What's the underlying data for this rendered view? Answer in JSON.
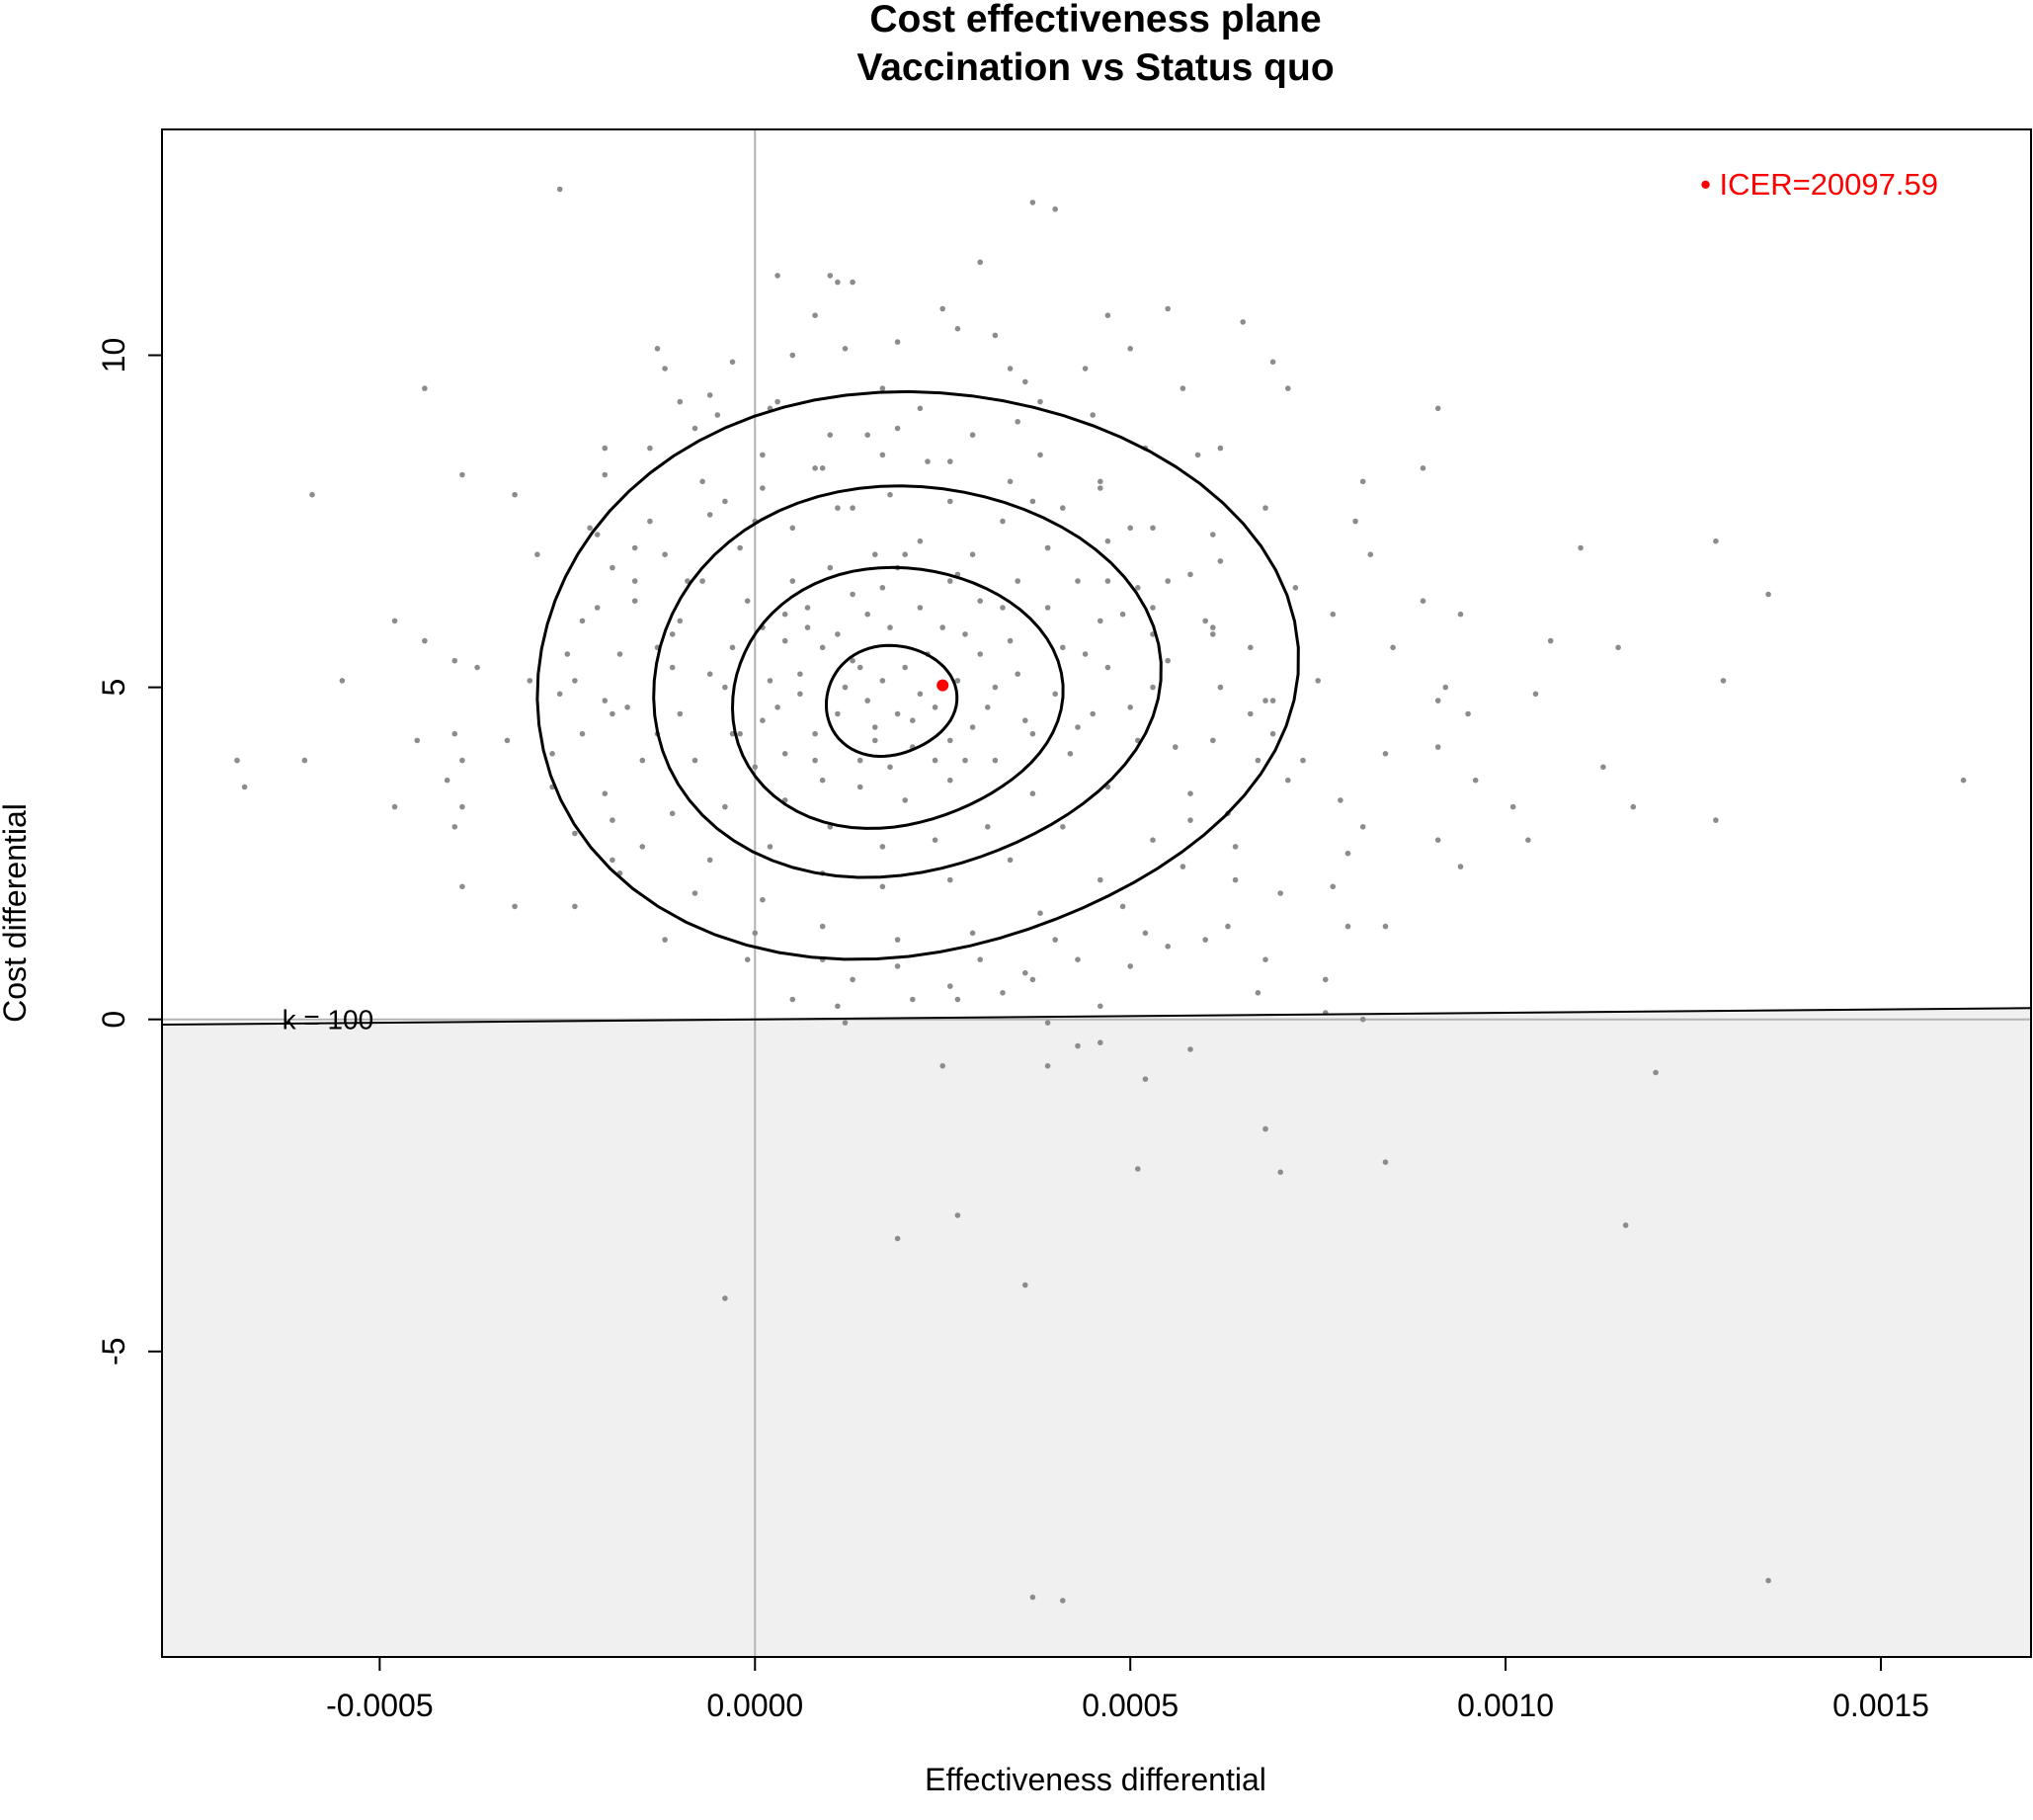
{
  "chart_data": {
    "type": "scatter",
    "title": "Cost effectiveness plane",
    "subtitle": "Vaccination vs Status quo",
    "xlabel": "Effectiveness differential",
    "ylabel": "Cost differential",
    "xlim": [
      -0.00079,
      0.0017
    ],
    "ylim": [
      -9.6,
      13.4
    ],
    "x_ticks": [
      {
        "value": -0.0005,
        "label": "-0.0005"
      },
      {
        "value": 0.0,
        "label": "0.0000"
      },
      {
        "value": 0.0005,
        "label": "0.0005"
      },
      {
        "value": 0.001,
        "label": "0.0010"
      },
      {
        "value": 0.0015,
        "label": "0.0015"
      }
    ],
    "y_ticks": [
      {
        "value": -5,
        "label": "-5"
      },
      {
        "value": 0,
        "label": "0"
      },
      {
        "value": 5,
        "label": "5"
      },
      {
        "value": 10,
        "label": "10"
      }
    ],
    "colors": {
      "points": "#8c8c8c",
      "icer": "#ff0000",
      "region": "#f0f0f0",
      "axes_zero": "#b3b3b3",
      "contour": "#000000"
    },
    "wtp_line": {
      "k": 100,
      "label": "k = 100"
    },
    "icer": {
      "x": 0.00025,
      "y": 5.03,
      "label": "• ICER=20097.59"
    },
    "contours": [
      {
        "cx": 0.00018,
        "cy": 4.8,
        "rx": 8.5e-05,
        "ry": 0.85
      },
      {
        "cx": 0.000185,
        "cy": 4.85,
        "rx": 0.000215,
        "ry": 2.0
      },
      {
        "cx": 0.000195,
        "cy": 5.1,
        "rx": 0.00033,
        "ry": 3.0
      },
      {
        "cx": 0.000205,
        "cy": 5.2,
        "rx": 0.000495,
        "ry": 4.35
      }
    ],
    "points": [
      [
        -0.00026,
        12.5
      ],
      [
        0.00037,
        12.3
      ],
      [
        0.0004,
        12.2
      ],
      [
        0.0003,
        11.4
      ],
      [
        3e-05,
        11.2
      ],
      [
        0.0001,
        11.2
      ],
      [
        0.00011,
        11.1
      ],
      [
        0.00013,
        11.1
      ],
      [
        0.00025,
        10.7
      ],
      [
        0.00055,
        10.7
      ],
      [
        0.00065,
        10.5
      ],
      [
        0.00047,
        10.6
      ],
      [
        8e-05,
        10.6
      ],
      [
        0.00027,
        10.4
      ],
      [
        0.00032,
        10.3
      ],
      [
        0.00019,
        10.2
      ],
      [
        -0.00013,
        10.1
      ],
      [
        5e-05,
        10.0
      ],
      [
        0.00012,
        10.1
      ],
      [
        0.0005,
        10.1
      ],
      [
        0.00069,
        9.9
      ],
      [
        -0.00012,
        9.8
      ],
      [
        -3e-05,
        9.9
      ],
      [
        0.00034,
        9.8
      ],
      [
        0.00044,
        9.8
      ],
      [
        -0.00044,
        9.5
      ],
      [
        0.00071,
        9.5
      ],
      [
        -6e-05,
        9.4
      ],
      [
        0.00017,
        9.5
      ],
      [
        0.00038,
        9.3
      ],
      [
        0.00057,
        9.5
      ],
      [
        0.00091,
        9.2
      ],
      [
        -5e-05,
        9.1
      ],
      [
        2e-05,
        9.2
      ],
      [
        0.00035,
        9.0
      ],
      [
        -8e-05,
        8.9
      ],
      [
        0.00015,
        8.8
      ],
      [
        0.00062,
        8.6
      ],
      [
        -0.00014,
        8.6
      ],
      [
        0.00023,
        8.4
      ],
      [
        0.00059,
        8.5
      ],
      [
        0.00089,
        8.3
      ],
      [
        -0.00039,
        8.2
      ],
      [
        -0.0002,
        8.2
      ],
      [
        8e-05,
        8.3
      ],
      [
        0.00046,
        8.1
      ],
      [
        0.00081,
        8.1
      ],
      [
        -0.00059,
        7.9
      ],
      [
        -0.00032,
        7.9
      ],
      [
        -4e-05,
        7.8
      ],
      [
        0.00013,
        7.7
      ],
      [
        0.00037,
        7.8
      ],
      [
        0.00068,
        7.7
      ],
      [
        0.0011,
        7.1
      ],
      [
        0.00128,
        7.2
      ],
      [
        -0.00022,
        7.4
      ],
      [
        0.0,
        7.5
      ],
      [
        0.0005,
        7.4
      ],
      [
        0.0008,
        7.5
      ],
      [
        -0.00029,
        7.0
      ],
      [
        -0.00016,
        7.1
      ],
      [
        0.0002,
        7.0
      ],
      [
        0.00039,
        7.1
      ],
      [
        0.00062,
        6.9
      ],
      [
        0.00082,
        7.0
      ],
      [
        -9e-05,
        6.6
      ],
      [
        0.00027,
        6.7
      ],
      [
        0.00047,
        6.6
      ],
      [
        0.00072,
        6.5
      ],
      [
        0.00089,
        6.3
      ],
      [
        0.00135,
        6.4
      ],
      [
        -0.00048,
        6.0
      ],
      [
        -0.00021,
        6.2
      ],
      [
        4e-05,
        6.1
      ],
      [
        0.00053,
        6.2
      ],
      [
        0.00077,
        6.1
      ],
      [
        0.00094,
        6.1
      ],
      [
        -0.00044,
        5.7
      ],
      [
        -0.00011,
        5.8
      ],
      [
        0.00061,
        5.8
      ],
      [
        0.00085,
        5.6
      ],
      [
        0.00106,
        5.7
      ],
      [
        0.00115,
        5.6
      ],
      [
        -0.0004,
        5.4
      ],
      [
        -0.00037,
        5.3
      ],
      [
        -0.0003,
        5.1
      ],
      [
        -0.00055,
        5.1
      ],
      [
        0.00075,
        5.1
      ],
      [
        0.00092,
        5.0
      ],
      [
        0.00129,
        5.1
      ],
      [
        -0.00026,
        4.9
      ],
      [
        0.00068,
        4.8
      ],
      [
        0.00091,
        4.8
      ],
      [
        0.00104,
        4.9
      ],
      [
        -0.00019,
        4.6
      ],
      [
        0.00066,
        4.6
      ],
      [
        0.00095,
        4.6
      ],
      [
        -0.00045,
        4.2
      ],
      [
        -0.0004,
        4.3
      ],
      [
        -0.00033,
        4.2
      ],
      [
        0.00069,
        4.3
      ],
      [
        0.00091,
        4.1
      ],
      [
        -0.00069,
        3.9
      ],
      [
        -0.0006,
        3.9
      ],
      [
        -0.00039,
        3.9
      ],
      [
        0.00073,
        3.9
      ],
      [
        0.00084,
        4.0
      ],
      [
        0.00113,
        3.8
      ],
      [
        -0.00068,
        3.5
      ],
      [
        -0.00041,
        3.6
      ],
      [
        -0.00027,
        3.5
      ],
      [
        0.00071,
        3.6
      ],
      [
        0.00096,
        3.6
      ],
      [
        0.00161,
        3.6
      ],
      [
        -0.00048,
        3.2
      ],
      [
        -0.00039,
        3.2
      ],
      [
        0.00078,
        3.3
      ],
      [
        0.00101,
        3.2
      ],
      [
        0.00117,
        3.2
      ],
      [
        -0.0004,
        2.9
      ],
      [
        -0.00024,
        2.8
      ],
      [
        0.00081,
        2.9
      ],
      [
        0.00091,
        2.7
      ],
      [
        0.00128,
        3.0
      ],
      [
        0.00103,
        2.7
      ],
      [
        -0.00019,
        2.4
      ],
      [
        0.00079,
        2.5
      ],
      [
        0.00094,
        2.3
      ],
      [
        -0.00039,
        2.0
      ],
      [
        -0.00018,
        2.2
      ],
      [
        0.00064,
        2.1
      ],
      [
        0.00077,
        2.0
      ],
      [
        -0.00032,
        1.7
      ],
      [
        -0.00024,
        1.7
      ],
      [
        0.0007,
        1.9
      ],
      [
        0.00079,
        1.4
      ],
      [
        0.00084,
        1.4
      ],
      [
        0.00052,
        1.3
      ],
      [
        0.0006,
        1.2
      ],
      [
        0.00068,
        0.9
      ],
      [
        0.0005,
        0.8
      ],
      [
        0.00076,
        0.6
      ],
      [
        0.00036,
        0.7
      ],
      [
        0.00037,
        0.6
      ],
      [
        0.00067,
        0.4
      ],
      [
        0.00046,
        0.2
      ],
      [
        5e-05,
        0.3
      ],
      [
        0.00027,
        0.3
      ],
      [
        0.00076,
        0.1
      ],
      [
        0.00081,
        0.0
      ],
      [
        0.00012,
        -0.05
      ],
      [
        0.00039,
        -0.05
      ],
      [
        0.00043,
        -0.4
      ],
      [
        0.00046,
        -0.35
      ],
      [
        0.00058,
        -0.45
      ],
      [
        0.00025,
        -0.7
      ],
      [
        0.00039,
        -0.7
      ],
      [
        0.00052,
        -0.9
      ],
      [
        0.0012,
        -0.8
      ],
      [
        0.00068,
        -1.65
      ],
      [
        0.00051,
        -2.25
      ],
      [
        0.0007,
        -2.3
      ],
      [
        0.00084,
        -2.15
      ],
      [
        0.00027,
        -2.95
      ],
      [
        0.00019,
        -3.3
      ],
      [
        0.00116,
        -3.1
      ],
      [
        0.00036,
        -4.0
      ],
      [
        -4e-05,
        -4.2
      ],
      [
        0.00037,
        -8.7
      ],
      [
        0.00041,
        -8.75
      ],
      [
        0.00135,
        -8.45
      ],
      [
        9e-05,
        5.6
      ],
      [
        0.00014,
        5.3
      ],
      [
        0.00018,
        5.9
      ],
      [
        0.00023,
        5.5
      ],
      [
        0.00028,
        5.8
      ],
      [
        6e-05,
        4.9
      ],
      [
        0.00011,
        4.6
      ],
      [
        0.00016,
        4.2
      ],
      [
        0.00021,
        4.5
      ],
      [
        0.00026,
        4.2
      ],
      [
        0.00031,
        4.7
      ],
      [
        0.00035,
        5.2
      ],
      [
        0.0003,
        5.5
      ],
      [
        0.00033,
        6.2
      ],
      [
        0.00026,
        6.6
      ],
      [
        0.00019,
        6.8
      ],
      [
        0.00013,
        6.4
      ],
      [
        7e-05,
        6.2
      ],
      [
        4e-05,
        5.7
      ],
      [
        2e-05,
        5.1
      ],
      [
        1e-05,
        4.5
      ],
      [
        4e-05,
        4.0
      ],
      [
        9e-05,
        3.6
      ],
      [
        0.00014,
        3.5
      ],
      [
        0.0002,
        3.3
      ],
      [
        0.00026,
        3.6
      ],
      [
        0.00032,
        3.9
      ],
      [
        0.00037,
        4.3
      ],
      [
        0.0004,
        4.9
      ],
      [
        0.00041,
        5.6
      ],
      [
        0.00039,
        6.2
      ],
      [
        0.00035,
        6.6
      ],
      [
        0.00029,
        7.0
      ],
      [
        0.00022,
        7.2
      ],
      [
        0.00016,
        7.0
      ],
      [
        0.0001,
        6.8
      ],
      [
        5e-05,
        6.6
      ],
      [
        -1e-05,
        6.3
      ],
      [
        -3e-05,
        5.6
      ],
      [
        -4e-05,
        5.0
      ],
      [
        -3e-05,
        4.3
      ],
      [
        0.0,
        3.8
      ],
      [
        4e-05,
        3.3
      ],
      [
        0.0001,
        2.9
      ],
      [
        0.00017,
        2.6
      ],
      [
        0.00024,
        2.7
      ],
      [
        0.00031,
        2.9
      ],
      [
        0.00037,
        3.4
      ],
      [
        0.00042,
        4.0
      ],
      [
        0.00045,
        4.6
      ],
      [
        0.00047,
        5.3
      ],
      [
        0.00046,
        6.0
      ],
      [
        0.00043,
        6.6
      ],
      [
        0.00039,
        7.1
      ],
      [
        0.00033,
        7.5
      ],
      [
        0.00026,
        7.8
      ],
      [
        0.00018,
        7.9
      ],
      [
        0.00011,
        7.7
      ],
      [
        5e-05,
        7.4
      ],
      [
        -2e-05,
        7.1
      ],
      [
        -7e-05,
        6.6
      ],
      [
        -0.0001,
        6.0
      ],
      [
        -0.00011,
        5.3
      ],
      [
        -0.0001,
        4.6
      ],
      [
        -8e-05,
        3.9
      ],
      [
        -4e-05,
        3.2
      ],
      [
        2e-05,
        2.6
      ],
      [
        9e-05,
        2.2
      ],
      [
        0.00017,
        2.0
      ],
      [
        0.00026,
        2.1
      ],
      [
        0.00034,
        2.4
      ],
      [
        0.00041,
        2.9
      ],
      [
        0.00047,
        3.5
      ],
      [
        0.00051,
        4.2
      ],
      [
        0.00053,
        5.0
      ],
      [
        0.00053,
        5.8
      ],
      [
        0.00051,
        6.5
      ],
      [
        0.00047,
        7.2
      ],
      [
        0.00041,
        7.7
      ],
      [
        0.00034,
        8.1
      ],
      [
        0.00026,
        8.4
      ],
      [
        0.00017,
        8.5
      ],
      [
        9e-05,
        8.3
      ],
      [
        1e-05,
        8.0
      ],
      [
        -6e-05,
        7.6
      ],
      [
        -0.00012,
        7.0
      ],
      [
        -0.00016,
        6.3
      ],
      [
        -0.00018,
        5.5
      ],
      [
        -0.00017,
        4.7
      ],
      [
        -0.00015,
        3.9
      ],
      [
        -0.00011,
        3.1
      ],
      [
        -6e-05,
        2.4
      ],
      [
        1e-05,
        1.8
      ],
      [
        9e-05,
        1.4
      ],
      [
        0.00019,
        1.2
      ],
      [
        0.00029,
        1.3
      ],
      [
        0.00038,
        1.6
      ],
      [
        0.00046,
        2.1
      ],
      [
        0.00053,
        2.7
      ],
      [
        0.00058,
        3.4
      ],
      [
        0.00061,
        4.2
      ],
      [
        0.00062,
        5.0
      ],
      [
        0.00061,
        5.9
      ],
      [
        0.00058,
        6.7
      ],
      [
        0.00053,
        7.4
      ],
      [
        0.00046,
        8.0
      ],
      [
        0.00038,
        8.5
      ],
      [
        0.00029,
        8.8
      ],
      [
        0.00019,
        8.9
      ],
      [
        0.0001,
        8.8
      ],
      [
        1e-05,
        8.5
      ],
      [
        -7e-05,
        8.1
      ],
      [
        -0.00014,
        7.5
      ],
      [
        -0.00019,
        6.8
      ],
      [
        -0.00023,
        6.0
      ],
      [
        -0.00024,
        5.1
      ],
      [
        -0.00023,
        4.3
      ],
      [
        -0.0002,
        3.4
      ],
      [
        -0.00015,
        2.6
      ],
      [
        -8e-05,
        1.9
      ],
      [
        0.0,
        1.3
      ],
      [
        9e-05,
        0.9
      ],
      [
        0.00019,
        0.8
      ],
      [
        0.0003,
        0.9
      ],
      [
        0.0004,
        1.2
      ],
      [
        0.00049,
        1.7
      ],
      [
        0.00057,
        2.3
      ],
      [
        0.00063,
        3.1
      ],
      [
        0.00067,
        3.9
      ],
      [
        0.00069,
        4.8
      ],
      [
        0.00015,
        4.8
      ],
      [
        0.00017,
        5.1
      ],
      [
        0.00019,
        4.6
      ],
      [
        0.00022,
        4.9
      ],
      [
        0.00012,
        5.0
      ],
      [
        0.0002,
        5.3
      ],
      [
        0.00024,
        4.7
      ],
      [
        0.00016,
        4.4
      ],
      [
        0.00013,
        5.4
      ],
      [
        0.00021,
        4.1
      ],
      [
        8e-05,
        4.3
      ],
      [
        0.00027,
        5.1
      ],
      [
        0.00025,
        5.9
      ],
      [
        0.00011,
        5.8
      ],
      [
        6e-05,
        5.2
      ],
      [
        0.00029,
        4.4
      ],
      [
        0.00018,
        3.8
      ],
      [
        0.00015,
        6.1
      ],
      [
        0.00022,
        6.2
      ],
      [
        0.00032,
        5.0
      ],
      [
        3e-05,
        4.7
      ],
      [
        8e-05,
        3.9
      ],
      [
        0.00028,
        3.9
      ],
      [
        0.00034,
        5.7
      ],
      [
        0.00014,
        3.9
      ],
      [
        0.00024,
        3.9
      ],
      [
        0.00036,
        4.5
      ],
      [
        7e-05,
        5.9
      ],
      [
        0.0003,
        6.3
      ],
      [
        0.00017,
        6.5
      ],
      [
        0.00044,
        5.5
      ],
      [
        0.00043,
        4.4
      ],
      [
        1e-05,
        5.9
      ],
      [
        -6e-05,
        5.2
      ],
      [
        -2e-05,
        4.3
      ],
      [
        0.0005,
        4.7
      ],
      [
        0.00049,
        6.1
      ],
      [
        -0.00013,
        5.6
      ],
      [
        -0.00013,
        4.3
      ],
      [
        0.00055,
        5.4
      ],
      [
        0.00056,
        4.1
      ],
      [
        0.00055,
        6.6
      ],
      [
        -0.00016,
        6.6
      ],
      [
        -0.0002,
        4.8
      ],
      [
        0.00058,
        3.0
      ],
      [
        0.0006,
        6.0
      ],
      [
        -0.00019,
        3.0
      ],
      [
        0.00061,
        7.3
      ],
      [
        -0.00021,
        7.3
      ],
      [
        0.00064,
        2.6
      ],
      [
        0.00066,
        5.6
      ],
      [
        -0.00025,
        5.5
      ],
      [
        -0.00027,
        4.0
      ],
      [
        3e-05,
        9.3
      ],
      [
        0.00022,
        9.2
      ],
      [
        0.00036,
        9.6
      ],
      [
        0.00045,
        9.1
      ],
      [
        -0.0001,
        9.3
      ],
      [
        0.00052,
        8.6
      ],
      [
        -0.0002,
        8.6
      ],
      [
        0.00026,
        0.5
      ],
      [
        0.00013,
        0.6
      ],
      [
        0.00043,
        0.9
      ],
      [
        -1e-05,
        0.9
      ],
      [
        0.00055,
        1.1
      ],
      [
        -0.00012,
        1.2
      ],
      [
        0.00063,
        1.4
      ],
      [
        0.00033,
        0.4
      ],
      [
        0.00021,
        0.3
      ],
      [
        0.00011,
        0.2
      ]
    ]
  }
}
